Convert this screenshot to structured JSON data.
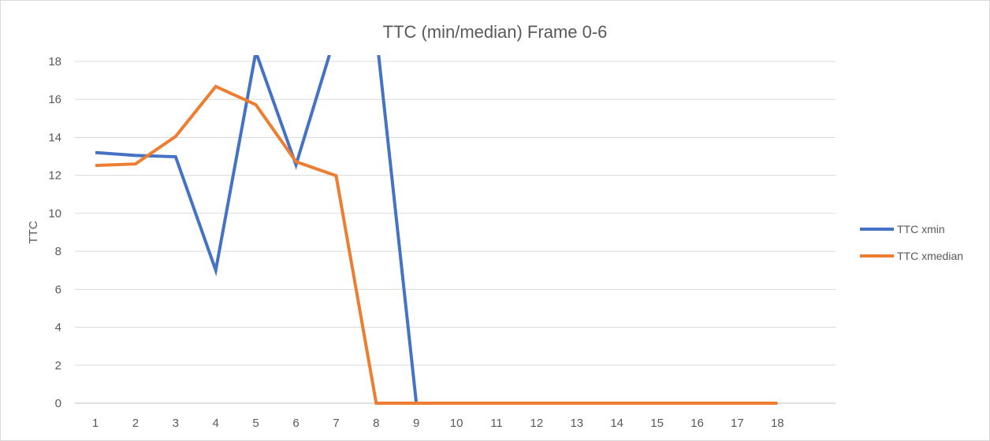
{
  "chart_data": {
    "type": "line",
    "title": "TTC (min/median) Frame 0-6",
    "xlabel": "",
    "ylabel": "TTC",
    "categories": [
      "1",
      "2",
      "3",
      "4",
      "5",
      "6",
      "7",
      "8",
      "9",
      "10",
      "11",
      "12",
      "13",
      "14",
      "15",
      "16",
      "17",
      "18"
    ],
    "ylim": [
      0,
      18
    ],
    "yticks": [
      0,
      2,
      4,
      6,
      8,
      10,
      12,
      14,
      16,
      18
    ],
    "grid": true,
    "legend_position": "right",
    "series": [
      {
        "name": "TTC xmin",
        "color": "#4472C4",
        "values": [
          13.2,
          13.05,
          12.98,
          7.0,
          18.5,
          12.55,
          19.5,
          19.5,
          0,
          0,
          0,
          0,
          0,
          0,
          0,
          0,
          0,
          0
        ]
      },
      {
        "name": "TTC xmedian",
        "color": "#ED7D31",
        "values": [
          12.52,
          12.6,
          14.05,
          16.68,
          15.72,
          12.72,
          11.98,
          0,
          0,
          0,
          0,
          0,
          0,
          0,
          0,
          0,
          0,
          0
        ]
      }
    ]
  }
}
